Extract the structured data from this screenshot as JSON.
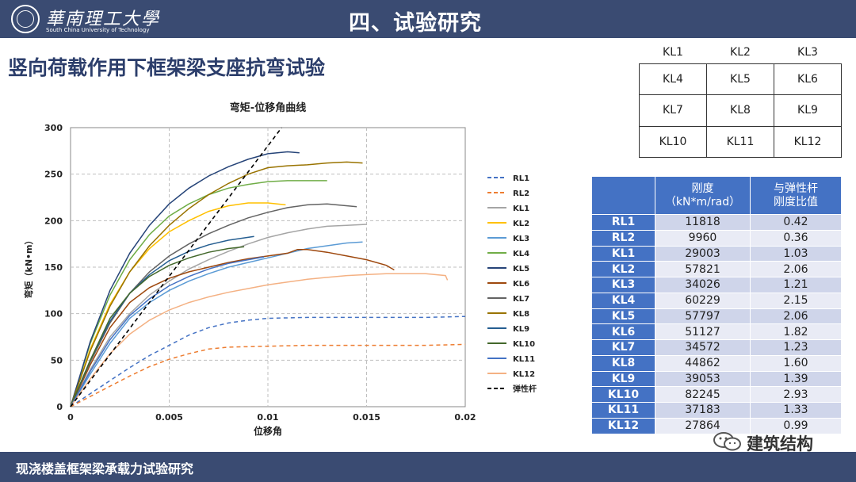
{
  "header": {
    "logo_cn": "華南理工大學",
    "logo_en": "South China University of Technology",
    "title": "四、试验研究"
  },
  "page_title": "竖向荷载作用下框架梁支座抗弯试验",
  "footer": {
    "text": "现浇楼盖框架梁承载力试验研究"
  },
  "brand": "建筑结构",
  "layout_table": [
    [
      "KL1",
      "KL2",
      "KL3"
    ],
    [
      "KL4",
      "KL5",
      "KL6"
    ],
    [
      "KL7",
      "KL8",
      "KL9"
    ],
    [
      "KL10",
      "KL11",
      "KL12"
    ]
  ],
  "stiffness_table": {
    "headers": [
      "",
      "刚度\n（kN*m/rad）",
      "与弹性杆\n刚度比值"
    ],
    "rows": [
      [
        "RL1",
        "11818",
        "0.42"
      ],
      [
        "RL2",
        "9960",
        "0.36"
      ],
      [
        "KL1",
        "29003",
        "1.03"
      ],
      [
        "KL2",
        "57821",
        "2.06"
      ],
      [
        "KL3",
        "34026",
        "1.21"
      ],
      [
        "KL4",
        "60229",
        "2.15"
      ],
      [
        "KL5",
        "57797",
        "2.06"
      ],
      [
        "KL6",
        "51127",
        "1.82"
      ],
      [
        "KL7",
        "34572",
        "1.23"
      ],
      [
        "KL8",
        "44862",
        "1.60"
      ],
      [
        "KL9",
        "39053",
        "1.39"
      ],
      [
        "KL10",
        "82245",
        "2.93"
      ],
      [
        "KL11",
        "37183",
        "1.33"
      ],
      [
        "KL12",
        "27864",
        "0.99"
      ]
    ]
  },
  "chart_data": {
    "type": "line",
    "title": "弯矩-位移角曲线",
    "xlabel": "位移角",
    "ylabel": "弯矩（kN•m）",
    "xlim": [
      0,
      0.02
    ],
    "ylim": [
      0,
      300
    ],
    "xticks": [
      0,
      0.005,
      0.01,
      0.015,
      0.02
    ],
    "xtick_labels": [
      "0",
      "0.005",
      "0.01",
      "0.015",
      "0.02"
    ],
    "yticks": [
      0,
      50,
      100,
      150,
      200,
      250,
      300
    ],
    "ytick_labels": [
      "0",
      "50",
      "100",
      "150",
      "200",
      "250",
      "300"
    ],
    "grid": "dashed",
    "legend_position": "right",
    "series": [
      {
        "name": "RL1",
        "color": "#4472c4",
        "dash": "dashed",
        "points": [
          [
            0,
            0
          ],
          [
            0.001,
            14
          ],
          [
            0.002,
            28
          ],
          [
            0.003,
            42
          ],
          [
            0.004,
            55
          ],
          [
            0.005,
            66
          ],
          [
            0.006,
            77
          ],
          [
            0.007,
            85
          ],
          [
            0.008,
            90
          ],
          [
            0.009,
            93
          ],
          [
            0.01,
            95
          ],
          [
            0.012,
            96
          ],
          [
            0.014,
            96
          ],
          [
            0.016,
            96
          ],
          [
            0.018,
            96
          ],
          [
            0.02,
            97
          ]
        ]
      },
      {
        "name": "RL2",
        "color": "#ed7d31",
        "dash": "dashed",
        "points": [
          [
            0,
            0
          ],
          [
            0.001,
            11
          ],
          [
            0.002,
            22
          ],
          [
            0.003,
            33
          ],
          [
            0.004,
            43
          ],
          [
            0.005,
            51
          ],
          [
            0.006,
            57
          ],
          [
            0.007,
            62
          ],
          [
            0.008,
            64
          ],
          [
            0.01,
            65
          ],
          [
            0.012,
            66
          ],
          [
            0.014,
            66
          ],
          [
            0.016,
            66
          ],
          [
            0.018,
            66
          ],
          [
            0.02,
            67
          ]
        ]
      },
      {
        "name": "KL1",
        "color": "#a5a5a5",
        "dash": "solid",
        "points": [
          [
            0,
            0
          ],
          [
            0.001,
            40
          ],
          [
            0.002,
            75
          ],
          [
            0.003,
            100
          ],
          [
            0.004,
            120
          ],
          [
            0.005,
            135
          ],
          [
            0.006,
            148
          ],
          [
            0.007,
            158
          ],
          [
            0.008,
            167
          ],
          [
            0.009,
            175
          ],
          [
            0.01,
            182
          ],
          [
            0.011,
            187
          ],
          [
            0.012,
            191
          ],
          [
            0.013,
            194
          ],
          [
            0.014,
            195
          ],
          [
            0.015,
            196
          ]
        ]
      },
      {
        "name": "KL2",
        "color": "#ffc000",
        "dash": "solid",
        "points": [
          [
            0,
            0
          ],
          [
            0.001,
            62
          ],
          [
            0.002,
            110
          ],
          [
            0.003,
            145
          ],
          [
            0.004,
            170
          ],
          [
            0.005,
            188
          ],
          [
            0.006,
            200
          ],
          [
            0.007,
            210
          ],
          [
            0.008,
            216
          ],
          [
            0.009,
            219
          ],
          [
            0.01,
            219
          ],
          [
            0.0109,
            217
          ]
        ]
      },
      {
        "name": "KL3",
        "color": "#5b9bd5",
        "dash": "solid",
        "points": [
          [
            0,
            0
          ],
          [
            0.001,
            35
          ],
          [
            0.002,
            68
          ],
          [
            0.003,
            95
          ],
          [
            0.004,
            112
          ],
          [
            0.005,
            125
          ],
          [
            0.006,
            135
          ],
          [
            0.007,
            143
          ],
          [
            0.008,
            150
          ],
          [
            0.009,
            155
          ],
          [
            0.01,
            160
          ],
          [
            0.011,
            165
          ],
          [
            0.012,
            170
          ],
          [
            0.013,
            173
          ],
          [
            0.014,
            176
          ],
          [
            0.0148,
            177
          ]
        ]
      },
      {
        "name": "KL4",
        "color": "#70ad47",
        "dash": "solid",
        "points": [
          [
            0,
            0
          ],
          [
            0.001,
            68
          ],
          [
            0.002,
            120
          ],
          [
            0.003,
            158
          ],
          [
            0.004,
            185
          ],
          [
            0.005,
            205
          ],
          [
            0.006,
            218
          ],
          [
            0.007,
            228
          ],
          [
            0.008,
            235
          ],
          [
            0.009,
            239
          ],
          [
            0.01,
            242
          ],
          [
            0.011,
            243
          ],
          [
            0.012,
            243
          ],
          [
            0.013,
            243
          ]
        ]
      },
      {
        "name": "KL5",
        "color": "#264478",
        "dash": "solid",
        "points": [
          [
            0,
            0
          ],
          [
            0.001,
            70
          ],
          [
            0.002,
            125
          ],
          [
            0.003,
            165
          ],
          [
            0.004,
            195
          ],
          [
            0.005,
            218
          ],
          [
            0.006,
            235
          ],
          [
            0.007,
            248
          ],
          [
            0.008,
            258
          ],
          [
            0.009,
            266
          ],
          [
            0.01,
            272
          ],
          [
            0.011,
            274
          ],
          [
            0.0116,
            273
          ]
        ]
      },
      {
        "name": "KL6",
        "color": "#9e480e",
        "dash": "solid",
        "points": [
          [
            0,
            0
          ],
          [
            0.001,
            45
          ],
          [
            0.002,
            85
          ],
          [
            0.003,
            112
          ],
          [
            0.004,
            128
          ],
          [
            0.005,
            138
          ],
          [
            0.006,
            145
          ],
          [
            0.007,
            150
          ],
          [
            0.008,
            155
          ],
          [
            0.009,
            159
          ],
          [
            0.01,
            162
          ],
          [
            0.011,
            165
          ],
          [
            0.0115,
            169
          ],
          [
            0.012,
            169
          ],
          [
            0.013,
            166
          ],
          [
            0.014,
            162
          ],
          [
            0.015,
            158
          ],
          [
            0.016,
            152
          ],
          [
            0.0164,
            147
          ]
        ]
      },
      {
        "name": "KL7",
        "color": "#636363",
        "dash": "solid",
        "points": [
          [
            0,
            0
          ],
          [
            0.001,
            48
          ],
          [
            0.002,
            90
          ],
          [
            0.003,
            122
          ],
          [
            0.004,
            145
          ],
          [
            0.005,
            162
          ],
          [
            0.006,
            175
          ],
          [
            0.007,
            186
          ],
          [
            0.008,
            195
          ],
          [
            0.009,
            203
          ],
          [
            0.01,
            209
          ],
          [
            0.011,
            214
          ],
          [
            0.012,
            217
          ],
          [
            0.013,
            218
          ],
          [
            0.0145,
            215
          ]
        ]
      },
      {
        "name": "KL8",
        "color": "#997300",
        "dash": "solid",
        "points": [
          [
            0,
            0
          ],
          [
            0.001,
            60
          ],
          [
            0.002,
            108
          ],
          [
            0.003,
            145
          ],
          [
            0.004,
            173
          ],
          [
            0.005,
            195
          ],
          [
            0.006,
            213
          ],
          [
            0.007,
            228
          ],
          [
            0.008,
            240
          ],
          [
            0.009,
            250
          ],
          [
            0.01,
            257
          ],
          [
            0.011,
            259
          ],
          [
            0.012,
            260
          ],
          [
            0.013,
            262
          ],
          [
            0.014,
            263
          ],
          [
            0.0148,
            262
          ]
        ]
      },
      {
        "name": "KL9",
        "color": "#255e91",
        "dash": "solid",
        "points": [
          [
            0,
            0
          ],
          [
            0.001,
            50
          ],
          [
            0.002,
            92
          ],
          [
            0.003,
            122
          ],
          [
            0.004,
            142
          ],
          [
            0.005,
            157
          ],
          [
            0.006,
            167
          ],
          [
            0.007,
            174
          ],
          [
            0.008,
            179
          ],
          [
            0.0093,
            183
          ]
        ]
      },
      {
        "name": "KL10",
        "color": "#43682b",
        "dash": "solid",
        "points": [
          [
            0,
            0
          ],
          [
            0.001,
            50
          ],
          [
            0.002,
            95
          ],
          [
            0.003,
            122
          ],
          [
            0.004,
            140
          ],
          [
            0.005,
            152
          ],
          [
            0.006,
            160
          ],
          [
            0.007,
            166
          ],
          [
            0.008,
            170
          ],
          [
            0.0088,
            172
          ]
        ]
      },
      {
        "name": "KL11",
        "color": "#4472c4",
        "dash": "solid",
        "points": [
          [
            0,
            0
          ],
          [
            0.001,
            38
          ],
          [
            0.002,
            72
          ],
          [
            0.003,
            98
          ],
          [
            0.004,
            116
          ],
          [
            0.005,
            130
          ],
          [
            0.006,
            140
          ],
          [
            0.007,
            148
          ],
          [
            0.008,
            154
          ],
          [
            0.009,
            158
          ],
          [
            0.0098,
            161
          ]
        ]
      },
      {
        "name": "KL12",
        "color": "#f4b183",
        "dash": "solid",
        "points": [
          [
            0,
            0
          ],
          [
            0.001,
            30
          ],
          [
            0.002,
            57
          ],
          [
            0.003,
            78
          ],
          [
            0.004,
            93
          ],
          [
            0.005,
            104
          ],
          [
            0.006,
            112
          ],
          [
            0.007,
            118
          ],
          [
            0.008,
            123
          ],
          [
            0.009,
            127
          ],
          [
            0.01,
            131
          ],
          [
            0.011,
            134
          ],
          [
            0.012,
            137
          ],
          [
            0.013,
            139
          ],
          [
            0.014,
            141
          ],
          [
            0.015,
            142
          ],
          [
            0.016,
            143
          ],
          [
            0.017,
            143
          ],
          [
            0.018,
            143
          ],
          [
            0.019,
            141
          ],
          [
            0.0191,
            136
          ]
        ]
      },
      {
        "name": "弹性杆",
        "color": "#000000",
        "dash": "dashed",
        "points": [
          [
            0,
            0
          ],
          [
            0.0107,
            300
          ]
        ]
      }
    ]
  }
}
